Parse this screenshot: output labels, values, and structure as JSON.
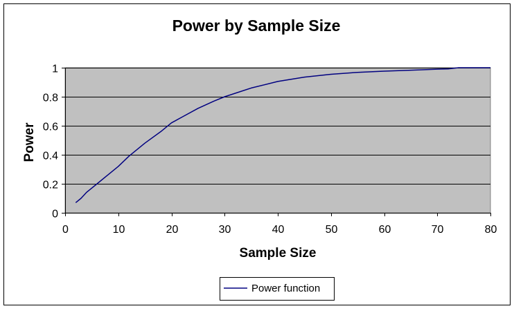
{
  "chart_data": {
    "type": "line",
    "title": "Power by Sample Size",
    "xlabel": "Sample Size",
    "ylabel": "Power",
    "xlim": [
      0,
      80
    ],
    "ylim": [
      0,
      1
    ],
    "x_ticks": [
      0,
      10,
      20,
      30,
      40,
      50,
      60,
      70,
      80
    ],
    "y_ticks": [
      0,
      0.2,
      0.4,
      0.6,
      0.8,
      1
    ],
    "y_tick_labels": [
      "0",
      "0.2",
      "0.4",
      "0.6",
      "0.8",
      "1"
    ],
    "grid": "horizontal",
    "legend_position": "bottom",
    "plot_background": "#c0c0c0",
    "series": [
      {
        "name": "Power function",
        "color": "#000080",
        "x": [
          2,
          3,
          4,
          6,
          8,
          10,
          12,
          15,
          18,
          20,
          22,
          25,
          28,
          30,
          35,
          40,
          45,
          50,
          55,
          60,
          65,
          70,
          72,
          74,
          80
        ],
        "y": [
          0.07,
          0.1,
          0.14,
          0.2,
          0.26,
          0.32,
          0.39,
          0.48,
          0.56,
          0.62,
          0.66,
          0.72,
          0.77,
          0.8,
          0.86,
          0.905,
          0.935,
          0.955,
          0.968,
          0.976,
          0.983,
          0.99,
          0.992,
          1.0,
          1.0
        ]
      }
    ]
  }
}
